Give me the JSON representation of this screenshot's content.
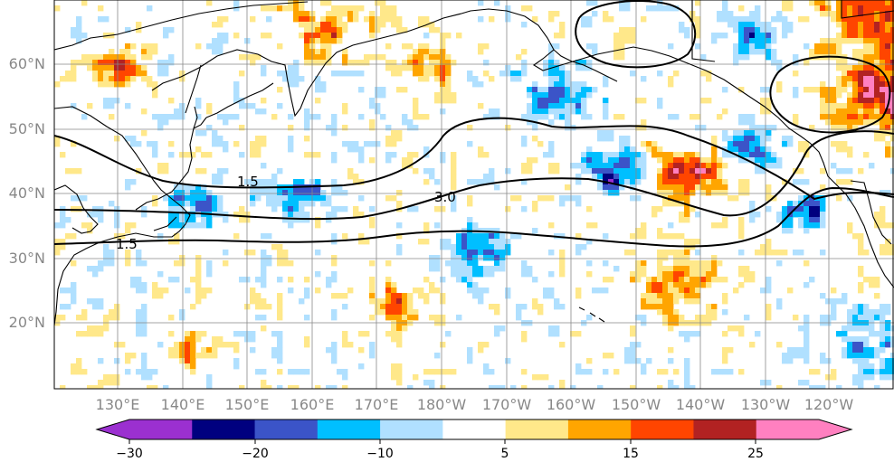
{
  "map": {
    "latitude_labels": [
      "60°N",
      "50°N",
      "40°N",
      "30°N",
      "20°N"
    ],
    "longitude_labels": [
      "130°E",
      "140°E",
      "150°E",
      "160°E",
      "170°E",
      "180°W",
      "170°W",
      "160°W",
      "150°W",
      "140°W",
      "130°W",
      "120°W"
    ],
    "contour_labels": [
      "3.0",
      "1.5",
      "1.5"
    ],
    "contour_color": "#000000",
    "coastline_color": "#000000",
    "grid_color": "#888888"
  },
  "colorbar": {
    "tick_labels": [
      "−30",
      "−20",
      "−10",
      "5",
      "15",
      "25"
    ],
    "colors": [
      "#9b30d0",
      "#00007f",
      "#3b54c8",
      "#00bfff",
      "#b0e0ff",
      "#ffffff",
      "#ffe88a",
      "#ffa500",
      "#ff4500",
      "#b22222",
      "#ff80c0"
    ]
  }
}
